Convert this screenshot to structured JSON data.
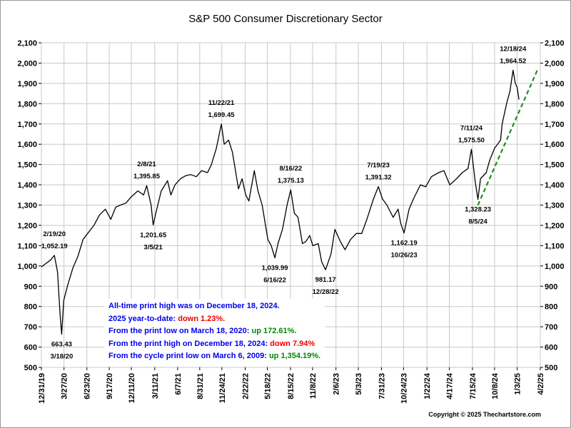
{
  "chart_data": {
    "type": "line",
    "title": "S&P 500 Consumer Discretionary Sector",
    "xlabel": "",
    "ylabel": "",
    "ylim": [
      500,
      2100
    ],
    "yticks": [
      500,
      600,
      700,
      800,
      900,
      1000,
      1100,
      1200,
      1300,
      1400,
      1500,
      1600,
      1700,
      1800,
      1900,
      2000,
      2100
    ],
    "ytick_labels": [
      "500",
      "600",
      "700",
      "800",
      "900",
      "1,000",
      "1,100",
      "1,200",
      "1,300",
      "1,400",
      "1,500",
      "1,600",
      "1,700",
      "1,800",
      "1,900",
      "2,000",
      "2,100"
    ],
    "xlim": [
      "2019-12-31",
      "2025-04-02"
    ],
    "xticks": [
      "2019-12-31",
      "2020-03-27",
      "2020-06-23",
      "2020-09-17",
      "2020-12-11",
      "2021-03-11",
      "2021-06-07",
      "2021-08-31",
      "2021-11-24",
      "2022-02-22",
      "2022-05-18",
      "2022-08-15",
      "2022-11-08",
      "2023-02-06",
      "2023-05-03",
      "2023-07-31",
      "2023-10-24",
      "2024-01-22",
      "2024-04-17",
      "2024-07-15",
      "2024-10-08",
      "2025-01-03",
      "2025-04-02"
    ],
    "xtick_labels": [
      "12/31/19",
      "3/27/20",
      "6/23/20",
      "9/17/20",
      "12/11/20",
      "3/11/21",
      "6/7/21",
      "8/31/21",
      "11/24/21",
      "2/22/22",
      "5/18/22",
      "8/15/22",
      "11/8/22",
      "2/6/23",
      "5/3/23",
      "7/31/23",
      "10/24/23",
      "1/22/24",
      "4/17/24",
      "7/15/24",
      "10/8/24",
      "1/3/25",
      "4/2/25"
    ],
    "grid": true,
    "y_axis_both_sides": true,
    "line_color": "#000000",
    "series": [
      {
        "x": [
          "2019-12-31",
          "2020-01-15",
          "2020-02-05",
          "2020-02-19",
          "2020-03-02",
          "2020-03-12",
          "2020-03-18",
          "2020-03-26",
          "2020-04-09",
          "2020-04-30",
          "2020-05-20",
          "2020-06-08",
          "2020-06-26",
          "2020-07-20",
          "2020-08-10",
          "2020-09-02",
          "2020-09-23",
          "2020-10-12",
          "2020-10-30",
          "2020-11-20",
          "2020-12-10",
          "2021-01-05",
          "2021-01-27",
          "2021-02-08",
          "2021-02-25",
          "2021-03-05",
          "2021-03-15",
          "2021-04-05",
          "2021-04-29",
          "2021-05-12",
          "2021-05-28",
          "2021-06-18",
          "2021-07-08",
          "2021-07-28",
          "2021-08-18",
          "2021-09-07",
          "2021-09-30",
          "2021-10-15",
          "2021-11-03",
          "2021-11-22",
          "2021-12-03",
          "2021-12-20",
          "2022-01-04",
          "2022-01-27",
          "2022-02-10",
          "2022-02-24",
          "2022-03-08",
          "2022-03-29",
          "2022-04-12",
          "2022-04-28",
          "2022-05-11",
          "2022-05-20",
          "2022-06-02",
          "2022-06-16",
          "2022-06-28",
          "2022-07-15",
          "2022-08-02",
          "2022-08-16",
          "2022-08-30",
          "2022-09-13",
          "2022-09-30",
          "2022-10-13",
          "2022-10-28",
          "2022-11-09",
          "2022-11-30",
          "2022-12-13",
          "2022-12-28",
          "2023-01-18",
          "2023-02-02",
          "2023-02-23",
          "2023-03-13",
          "2023-04-03",
          "2023-04-25",
          "2023-05-16",
          "2023-06-05",
          "2023-06-30",
          "2023-07-19",
          "2023-08-04",
          "2023-08-21",
          "2023-09-14",
          "2023-10-03",
          "2023-10-13",
          "2023-10-26",
          "2023-11-14",
          "2023-12-01",
          "2023-12-28",
          "2024-01-17",
          "2024-02-08",
          "2024-03-07",
          "2024-03-27",
          "2024-04-19",
          "2024-05-15",
          "2024-06-06",
          "2024-06-28",
          "2024-07-11",
          "2024-07-25",
          "2024-08-05",
          "2024-08-15",
          "2024-09-06",
          "2024-09-19",
          "2024-10-08",
          "2024-10-31",
          "2024-11-06",
          "2024-11-25",
          "2024-12-06",
          "2024-12-18",
          "2024-12-27",
          "2025-01-03",
          "2025-01-10"
        ],
        "y": [
          995,
          1010,
          1030,
          1052,
          970,
          760,
          663,
          830,
          900,
          990,
          1050,
          1130,
          1160,
          1200,
          1250,
          1280,
          1230,
          1290,
          1300,
          1310,
          1340,
          1370,
          1350,
          1396,
          1300,
          1202,
          1260,
          1370,
          1420,
          1350,
          1400,
          1430,
          1445,
          1450,
          1440,
          1470,
          1460,
          1500,
          1580,
          1699,
          1600,
          1620,
          1560,
          1380,
          1430,
          1350,
          1320,
          1470,
          1370,
          1300,
          1200,
          1130,
          1100,
          1040,
          1110,
          1180,
          1300,
          1375,
          1260,
          1240,
          1110,
          1120,
          1150,
          1100,
          1110,
          1020,
          981,
          1060,
          1180,
          1120,
          1080,
          1130,
          1160,
          1160,
          1230,
          1330,
          1391,
          1330,
          1300,
          1240,
          1280,
          1210,
          1162,
          1280,
          1330,
          1400,
          1390,
          1440,
          1460,
          1470,
          1400,
          1430,
          1460,
          1480,
          1575,
          1420,
          1328,
          1430,
          1460,
          1520,
          1580,
          1620,
          1700,
          1810,
          1860,
          1965,
          1900,
          1880,
          1820
        ]
      }
    ],
    "trendline": {
      "color": "#228B22",
      "style": "dashed",
      "from": {
        "x": "2024-08-05",
        "y": 1300
      },
      "to": {
        "x": "2025-03-25",
        "y": 1975
      }
    },
    "annotations": [
      {
        "date_label": "2/19/20",
        "value_label": "1,052.19",
        "x": "2020-02-19",
        "y": 1052,
        "pos": "above"
      },
      {
        "date_label": "3/18/20",
        "value_label": "663.43",
        "x": "2020-03-18",
        "y": 663,
        "pos": "below"
      },
      {
        "date_label": "2/8/21",
        "value_label": "1,395.85",
        "x": "2021-02-08",
        "y": 1396,
        "pos": "above"
      },
      {
        "date_label": "3/5/21",
        "value_label": "1,201.65",
        "x": "2021-03-05",
        "y": 1202,
        "pos": "below"
      },
      {
        "date_label": "11/22/21",
        "value_label": "1,699.45",
        "x": "2021-11-22",
        "y": 1699,
        "pos": "above"
      },
      {
        "date_label": "6/16/22",
        "value_label": "1,039.99",
        "x": "2022-06-16",
        "y": 1040,
        "pos": "below"
      },
      {
        "date_label": "8/16/22",
        "value_label": "1,375.13",
        "x": "2022-08-16",
        "y": 1375,
        "pos": "above"
      },
      {
        "date_label": "12/28/22",
        "value_label": "981.17",
        "x": "2022-12-28",
        "y": 981,
        "pos": "below"
      },
      {
        "date_label": "7/19/23",
        "value_label": "1,391.32",
        "x": "2023-07-19",
        "y": 1391,
        "pos": "above"
      },
      {
        "date_label": "10/26/23",
        "value_label": "1,162.19",
        "x": "2023-10-26",
        "y": 1162,
        "pos": "below"
      },
      {
        "date_label": "7/11/24",
        "value_label": "1,575.50",
        "x": "2024-07-11",
        "y": 1575,
        "pos": "above"
      },
      {
        "date_label": "8/5/24",
        "value_label": "1,328.23",
        "x": "2024-08-05",
        "y": 1328,
        "pos": "below"
      },
      {
        "date_label": "12/18/24",
        "value_label": "1,964.52",
        "x": "2024-12-18",
        "y": 1965,
        "pos": "above"
      }
    ],
    "notes": [
      {
        "parts": [
          {
            "text": "All-time print high was on December 18, 2024.",
            "color": "blue"
          }
        ]
      },
      {
        "parts": [
          {
            "text": "2025 year-to-date:  ",
            "color": "blue"
          },
          {
            "text": "down 1.23%.",
            "color": "red"
          }
        ]
      },
      {
        "parts": [
          {
            "text": "From the print low on March 18, 2020:  ",
            "color": "blue"
          },
          {
            "text": "up 172.61%.",
            "color": "green"
          }
        ]
      },
      {
        "parts": [
          {
            "text": "From the print high on December 18, 2024:  ",
            "color": "blue"
          },
          {
            "text": "down 7.94%",
            "color": "red"
          }
        ]
      },
      {
        "parts": [
          {
            "text": "From the cycle print low on March 6, 2009:  ",
            "color": "blue"
          },
          {
            "text": "up 1,354.19%.",
            "color": "green"
          }
        ]
      }
    ],
    "copyright": "Copyright © 2025 Thechartstore.com"
  }
}
